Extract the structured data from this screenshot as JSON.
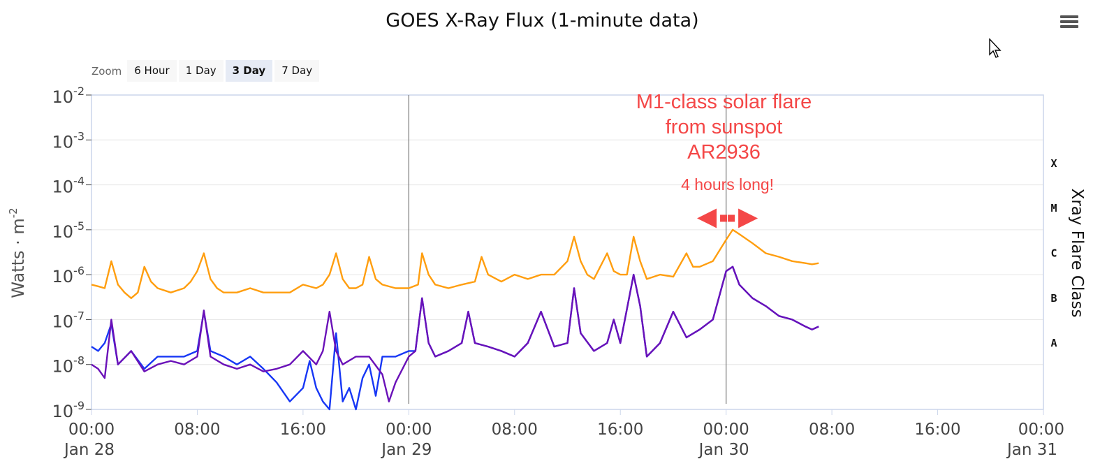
{
  "title": "GOES X-Ray Flux (1-minute data)",
  "zoom": {
    "label": "Zoom",
    "buttons": [
      "6 Hour",
      "1 Day",
      "3 Day",
      "7 Day"
    ],
    "active": "3 Day"
  },
  "icons": {
    "menu": "hamburger-menu-icon",
    "cursor": "mouse-pointer-icon"
  },
  "colors": {
    "long_wave": "#ff9e0f",
    "short_wave_primary": "#1737f5",
    "short_wave_secondary": "#6a11b8",
    "annotation": "#f44747"
  },
  "chart_data": {
    "type": "line",
    "title": "GOES X-Ray Flux (1-minute data)",
    "ylabel": "Watts · m",
    "ylabel_superscript": "-2",
    "y2label": "Xray Flare Class",
    "yscale": "log",
    "ylim": [
      1e-09,
      0.01
    ],
    "y_ticks": [
      {
        "base": "10",
        "exp": "-2"
      },
      {
        "base": "10",
        "exp": "-3"
      },
      {
        "base": "10",
        "exp": "-4"
      },
      {
        "base": "10",
        "exp": "-5"
      },
      {
        "base": "10",
        "exp": "-6"
      },
      {
        "base": "10",
        "exp": "-7"
      },
      {
        "base": "10",
        "exp": "-8"
      },
      {
        "base": "10",
        "exp": "-9"
      }
    ],
    "flare_classes": [
      {
        "label": "X",
        "value": 0.0003
      },
      {
        "label": "M",
        "value": 3e-05
      },
      {
        "label": "C",
        "value": 3e-06
      },
      {
        "label": "B",
        "value": 3e-07
      },
      {
        "label": "A",
        "value": 3e-08
      }
    ],
    "xlim_hours": [
      0,
      72
    ],
    "x_ticks": [
      {
        "h": 0,
        "time": "00:00",
        "date": "Jan 28"
      },
      {
        "h": 8,
        "time": "08:00",
        "date": ""
      },
      {
        "h": 16,
        "time": "16:00",
        "date": ""
      },
      {
        "h": 24,
        "time": "00:00",
        "date": "Jan 29"
      },
      {
        "h": 32,
        "time": "08:00",
        "date": ""
      },
      {
        "h": 40,
        "time": "16:00",
        "date": ""
      },
      {
        "h": 48,
        "time": "00:00",
        "date": "Jan 30"
      },
      {
        "h": 56,
        "time": "08:00",
        "date": ""
      },
      {
        "h": 64,
        "time": "16:00",
        "date": ""
      },
      {
        "h": 72,
        "time": "00:00",
        "date": "Jan 31"
      }
    ],
    "day_lines_hours": [
      24,
      48
    ],
    "series": [
      {
        "color": "#ff9e0f",
        "points": [
          [
            0,
            6e-07
          ],
          [
            0.5,
            5.5e-07
          ],
          [
            1,
            5e-07
          ],
          [
            1.5,
            2e-06
          ],
          [
            2,
            6e-07
          ],
          [
            2.5,
            4e-07
          ],
          [
            3,
            3e-07
          ],
          [
            3.5,
            4e-07
          ],
          [
            4,
            1.5e-06
          ],
          [
            4.5,
            7e-07
          ],
          [
            5,
            5e-07
          ],
          [
            6,
            4e-07
          ],
          [
            7,
            5e-07
          ],
          [
            7.5,
            7e-07
          ],
          [
            8,
            1.2e-06
          ],
          [
            8.5,
            3e-06
          ],
          [
            9,
            8e-07
          ],
          [
            9.5,
            5e-07
          ],
          [
            10,
            4e-07
          ],
          [
            11,
            4e-07
          ],
          [
            12,
            5e-07
          ],
          [
            13,
            4e-07
          ],
          [
            14,
            4e-07
          ],
          [
            15,
            4e-07
          ],
          [
            16,
            6e-07
          ],
          [
            17,
            5e-07
          ],
          [
            17.5,
            6e-07
          ],
          [
            18,
            1e-06
          ],
          [
            18.5,
            3e-06
          ],
          [
            19,
            8e-07
          ],
          [
            19.5,
            5e-07
          ],
          [
            20,
            5e-07
          ],
          [
            20.5,
            6e-07
          ],
          [
            21,
            2.5e-06
          ],
          [
            21.5,
            8e-07
          ],
          [
            22,
            6e-07
          ],
          [
            23,
            5e-07
          ],
          [
            24,
            5e-07
          ],
          [
            24.7,
            6e-07
          ],
          [
            25,
            3e-06
          ],
          [
            25.5,
            1e-06
          ],
          [
            26,
            6e-07
          ],
          [
            27,
            5e-07
          ],
          [
            28,
            6e-07
          ],
          [
            29,
            7e-07
          ],
          [
            29.5,
            2.5e-06
          ],
          [
            30,
            1e-06
          ],
          [
            31,
            7e-07
          ],
          [
            32,
            1e-06
          ],
          [
            33,
            8e-07
          ],
          [
            34,
            1e-06
          ],
          [
            35,
            1e-06
          ],
          [
            36,
            2e-06
          ],
          [
            36.5,
            7e-06
          ],
          [
            37,
            2e-06
          ],
          [
            37.5,
            1e-06
          ],
          [
            38,
            8e-07
          ],
          [
            39,
            3e-06
          ],
          [
            39.5,
            1.2e-06
          ],
          [
            40,
            1e-06
          ],
          [
            40.5,
            1e-06
          ],
          [
            41,
            7e-06
          ],
          [
            41.5,
            2e-06
          ],
          [
            42,
            8e-07
          ],
          [
            43,
            1e-06
          ],
          [
            44,
            9e-07
          ],
          [
            45,
            3e-06
          ],
          [
            45.5,
            1.5e-06
          ],
          [
            46,
            1.5e-06
          ],
          [
            47,
            2e-06
          ],
          [
            48,
            6e-06
          ],
          [
            48.5,
            1e-05
          ],
          [
            49,
            8e-06
          ],
          [
            50,
            5e-06
          ],
          [
            51,
            3e-06
          ],
          [
            52,
            2.5e-06
          ],
          [
            53,
            2e-06
          ],
          [
            54,
            1.8e-06
          ],
          [
            54.5,
            1.7e-06
          ],
          [
            55,
            1.8e-06
          ]
        ]
      },
      {
        "color": "#1737f5",
        "points": [
          [
            0,
            2.5e-08
          ],
          [
            0.5,
            2e-08
          ],
          [
            1,
            3e-08
          ],
          [
            1.5,
            8e-08
          ],
          [
            2,
            1e-08
          ],
          [
            3,
            2e-08
          ],
          [
            4,
            8e-09
          ],
          [
            5,
            1.5e-08
          ],
          [
            6,
            1.5e-08
          ],
          [
            7,
            1.5e-08
          ],
          [
            8,
            2e-08
          ],
          [
            8.5,
            1.5e-07
          ],
          [
            9,
            2e-08
          ],
          [
            10,
            1.5e-08
          ],
          [
            11,
            1e-08
          ],
          [
            12,
            1.5e-08
          ],
          [
            13,
            8e-09
          ],
          [
            14,
            4e-09
          ],
          [
            15,
            1.5e-09
          ],
          [
            16,
            3e-09
          ],
          [
            16.5,
            1.2e-08
          ],
          [
            17,
            3e-09
          ],
          [
            17.5,
            1.5e-09
          ],
          [
            18,
            1e-09
          ],
          [
            18.5,
            5e-08
          ],
          [
            19,
            1.5e-09
          ],
          [
            19.5,
            3e-09
          ],
          [
            20,
            1e-09
          ],
          [
            20.5,
            5e-09
          ],
          [
            21,
            1e-08
          ],
          [
            21.5,
            2e-09
          ],
          [
            22,
            1.5e-08
          ],
          [
            23,
            1.5e-08
          ],
          [
            24,
            2e-08
          ],
          [
            24.5,
            2e-08
          ],
          [
            25,
            3e-07
          ],
          [
            25.5,
            3e-08
          ],
          [
            26,
            1.5e-08
          ],
          [
            27,
            2e-08
          ],
          [
            28,
            3e-08
          ],
          [
            28.5,
            1.5e-07
          ],
          [
            29,
            3e-08
          ],
          [
            30,
            2.5e-08
          ],
          [
            31,
            2e-08
          ],
          [
            32,
            1.5e-08
          ],
          [
            33,
            3e-08
          ],
          [
            34,
            1.5e-07
          ],
          [
            35,
            2.5e-08
          ],
          [
            36,
            3e-08
          ],
          [
            36.5,
            5e-07
          ],
          [
            37,
            5e-08
          ],
          [
            38,
            2e-08
          ],
          [
            39,
            3e-08
          ],
          [
            39.5,
            1e-07
          ],
          [
            40,
            3e-08
          ],
          [
            41,
            1e-06
          ],
          [
            41.5,
            2e-07
          ],
          [
            42,
            1.5e-08
          ],
          [
            43,
            3e-08
          ],
          [
            44,
            1.5e-07
          ],
          [
            45,
            4e-08
          ],
          [
            46,
            6e-08
          ],
          [
            47,
            1e-07
          ],
          [
            48,
            1.2e-06
          ],
          [
            48.5,
            1.5e-06
          ],
          [
            49,
            6e-07
          ],
          [
            50,
            3e-07
          ],
          [
            51,
            2e-07
          ],
          [
            52,
            1.2e-07
          ],
          [
            53,
            1e-07
          ],
          [
            54,
            7e-08
          ],
          [
            54.5,
            6e-08
          ],
          [
            55,
            7e-08
          ]
        ]
      },
      {
        "color": "#6a11b8",
        "points": [
          [
            0,
            1e-08
          ],
          [
            0.5,
            8e-09
          ],
          [
            1,
            5e-09
          ],
          [
            1.5,
            1e-07
          ],
          [
            2,
            1e-08
          ],
          [
            3,
            2e-08
          ],
          [
            4,
            7e-09
          ],
          [
            5,
            1e-08
          ],
          [
            6,
            1.2e-08
          ],
          [
            7,
            1e-08
          ],
          [
            8,
            1.5e-08
          ],
          [
            8.5,
            1.6e-07
          ],
          [
            9,
            1.5e-08
          ],
          [
            10,
            1e-08
          ],
          [
            11,
            8e-09
          ],
          [
            12,
            1e-08
          ],
          [
            13,
            7e-09
          ],
          [
            14,
            8e-09
          ],
          [
            15,
            1e-08
          ],
          [
            16,
            2e-08
          ],
          [
            17,
            1e-08
          ],
          [
            17.5,
            2e-08
          ],
          [
            18,
            1.5e-07
          ],
          [
            18.5,
            2e-08
          ],
          [
            19,
            1e-08
          ],
          [
            20,
            1.5e-08
          ],
          [
            21,
            1.5e-08
          ],
          [
            22,
            6e-09
          ],
          [
            22.5,
            1.5e-09
          ],
          [
            23,
            4e-09
          ],
          [
            24,
            1.5e-08
          ],
          [
            24.5,
            2e-08
          ],
          [
            25,
            3e-07
          ],
          [
            25.5,
            3e-08
          ],
          [
            26,
            1.5e-08
          ],
          [
            27,
            2e-08
          ],
          [
            28,
            3e-08
          ],
          [
            28.5,
            1.5e-07
          ],
          [
            29,
            3e-08
          ],
          [
            30,
            2.5e-08
          ],
          [
            31,
            2e-08
          ],
          [
            32,
            1.5e-08
          ],
          [
            33,
            3e-08
          ],
          [
            34,
            1.5e-07
          ],
          [
            35,
            2.5e-08
          ],
          [
            36,
            3e-08
          ],
          [
            36.5,
            5e-07
          ],
          [
            37,
            5e-08
          ],
          [
            38,
            2e-08
          ],
          [
            39,
            3e-08
          ],
          [
            39.5,
            1e-07
          ],
          [
            40,
            3e-08
          ],
          [
            41,
            1e-06
          ],
          [
            41.5,
            2e-07
          ],
          [
            42,
            1.5e-08
          ],
          [
            43,
            3e-08
          ],
          [
            44,
            1.5e-07
          ],
          [
            45,
            4e-08
          ],
          [
            46,
            6e-08
          ],
          [
            47,
            1e-07
          ],
          [
            48,
            1.2e-06
          ],
          [
            48.5,
            1.5e-06
          ],
          [
            49,
            6e-07
          ],
          [
            50,
            3e-07
          ],
          [
            51,
            2e-07
          ],
          [
            52,
            1.2e-07
          ],
          [
            53,
            1e-07
          ],
          [
            54,
            7e-08
          ],
          [
            54.5,
            6e-08
          ],
          [
            55,
            7e-08
          ]
        ]
      }
    ],
    "annotation": {
      "lines": [
        "M1-class solar flare",
        "from sunspot",
        "AR2936"
      ],
      "duration": "4 hours long!",
      "arrow_start_hours": 45.8,
      "arrow_end_hours": 50.4,
      "arrow_value": 1.8e-05,
      "color": "#f44747"
    }
  }
}
